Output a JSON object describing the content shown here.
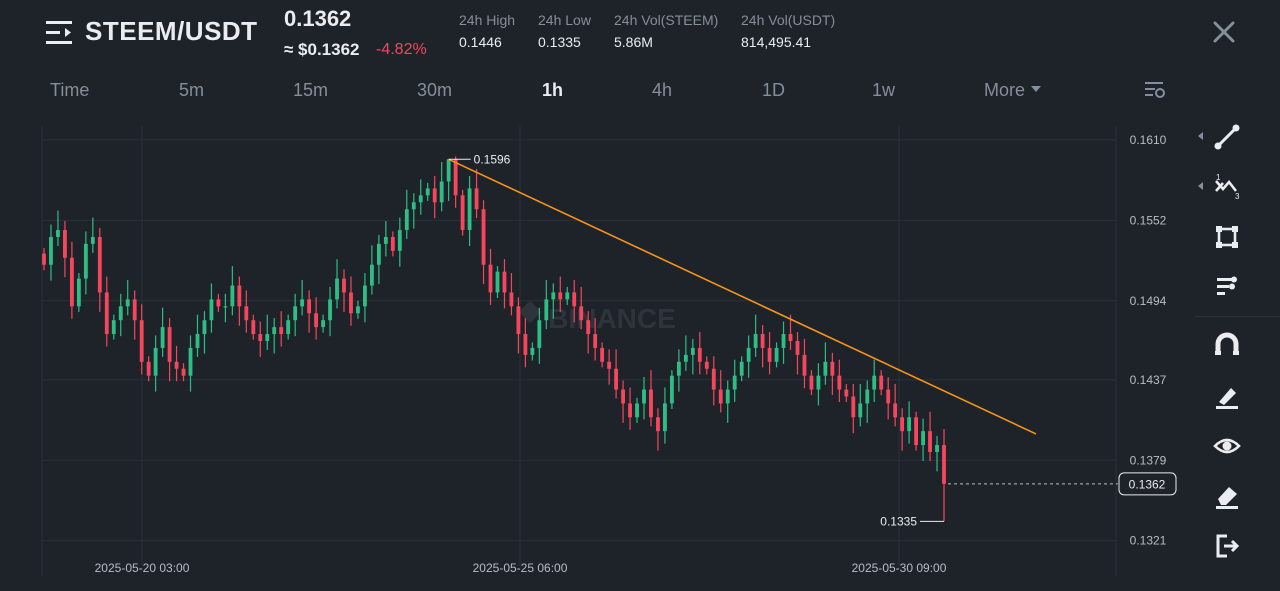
{
  "header": {
    "pair": "STEEM/USDT",
    "last_price": "0.1362",
    "fiat_price": "≈ $0.1362",
    "change": "-4.82%",
    "stats": [
      {
        "label": "24h High",
        "value": "0.1446"
      },
      {
        "label": "24h Low",
        "value": "0.1335"
      },
      {
        "label": "24h Vol(STEEM)",
        "value": "5.86M"
      },
      {
        "label": "24h Vol(USDT)",
        "value": "814,495.41"
      }
    ]
  },
  "tabs": {
    "items": [
      "Time",
      "5m",
      "15m",
      "30m",
      "1h",
      "4h",
      "1D",
      "1w"
    ],
    "active": "1h",
    "more": "More"
  },
  "chart_data": {
    "type": "candlestick",
    "watermark": "BINANCE",
    "y_ticks": [
      "0.1610",
      "0.1552",
      "0.1494",
      "0.1437",
      "0.1379",
      "0.1321"
    ],
    "ylim": [
      0.131,
      0.162
    ],
    "x_ticks": [
      "2025-05-20 03:00",
      "2025-05-25 06:00",
      "2025-05-30 09:00"
    ],
    "current_price": "0.1362",
    "high_label": "0.1596",
    "low_label": "0.1335",
    "trendline": {
      "from": 0.1596,
      "to": 0.1398
    },
    "colors": {
      "up": "#2ebd85",
      "down": "#f6465d",
      "trend": "#f7931a",
      "grid": "#2b3139",
      "axis_text": "#b7bdc6"
    },
    "closes": [
      0.152,
      0.154,
      0.1545,
      0.1525,
      0.149,
      0.151,
      0.1535,
      0.154,
      0.15,
      0.147,
      0.148,
      0.149,
      0.1495,
      0.148,
      0.145,
      0.144,
      0.146,
      0.1475,
      0.145,
      0.1445,
      0.144,
      0.146,
      0.147,
      0.148,
      0.1495,
      0.149,
      0.149,
      0.1505,
      0.149,
      0.148,
      0.147,
      0.1465,
      0.147,
      0.1475,
      0.147,
      0.148,
      0.149,
      0.1495,
      0.1485,
      0.1475,
      0.148,
      0.1495,
      0.151,
      0.15,
      0.1485,
      0.149,
      0.1505,
      0.152,
      0.1535,
      0.154,
      0.153,
      0.1545,
      0.156,
      0.1565,
      0.157,
      0.1575,
      0.1565,
      0.158,
      0.1596,
      0.157,
      0.1545,
      0.1575,
      0.156,
      0.152,
      0.15,
      0.1515,
      0.15,
      0.149,
      0.147,
      0.1455,
      0.146,
      0.148,
      0.1495,
      0.15,
      0.1495,
      0.15,
      0.149,
      0.148,
      0.147,
      0.146,
      0.145,
      0.1445,
      0.143,
      0.142,
      0.141,
      0.142,
      0.143,
      0.141,
      0.14,
      0.142,
      0.144,
      0.145,
      0.1455,
      0.146,
      0.145,
      0.1445,
      0.143,
      0.142,
      0.143,
      0.144,
      0.145,
      0.146,
      0.147,
      0.146,
      0.145,
      0.146,
      0.147,
      0.1465,
      0.1455,
      0.144,
      0.143,
      0.144,
      0.145,
      0.144,
      0.143,
      0.1425,
      0.141,
      0.142,
      0.143,
      0.144,
      0.143,
      0.142,
      0.141,
      0.14,
      0.141,
      0.139,
      0.14,
      0.1385,
      0.139,
      0.1362
    ]
  },
  "tools": {
    "icons": [
      "line-tool-icon",
      "fib-tool-icon",
      "shape-tool-icon",
      "text-tool-icon",
      "magnet-icon",
      "brush-icon",
      "eye-icon",
      "eraser-icon",
      "exit-icon"
    ]
  }
}
